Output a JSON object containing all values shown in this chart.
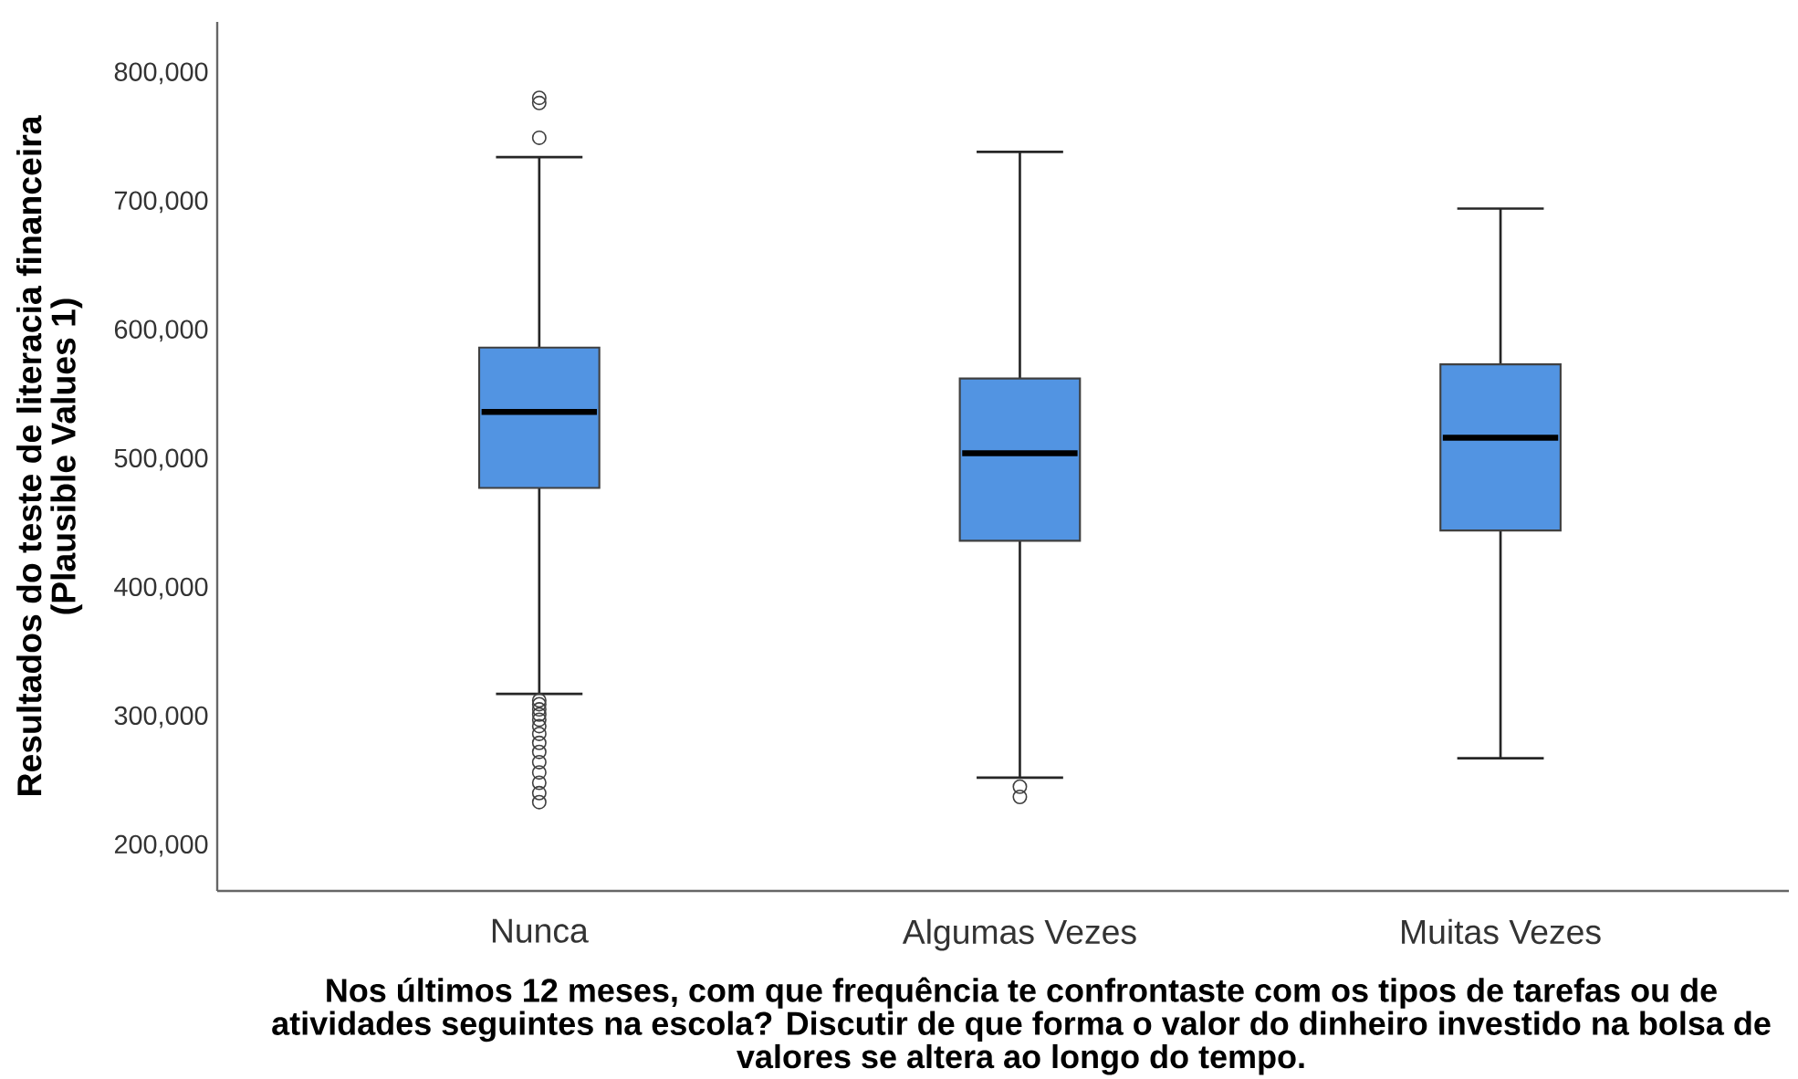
{
  "chart_data": {
    "type": "box",
    "xlabel": "Nos últimos 12 meses, com que frequência te confrontaste com os tipos de tarefas ou de atividades seguintes na escola? Discutir de que forma o valor do dinheiro investido na bolsa de valores se altera ao longo do tempo.",
    "ylabel": "Resultados do teste de literacia financeira (Plausible Values 1)",
    "categories": [
      "Nunca",
      "Algumas Vezes",
      "Muitas Vezes"
    ],
    "color": "#5294e2",
    "boxes": [
      {
        "low": 318000,
        "q1": 478000,
        "median": 537000,
        "q3": 587000,
        "high": 735000,
        "outliers": [
          781000,
          777000,
          750000,
          313000,
          310000,
          306000,
          302000,
          298000,
          293000,
          287000,
          280000,
          273000,
          265000,
          257000,
          249000,
          241000,
          234000
        ]
      },
      {
        "low": 253000,
        "q1": 437000,
        "median": 505000,
        "q3": 563000,
        "high": 739000,
        "outliers": [
          246000,
          238000
        ]
      },
      {
        "low": 268000,
        "q1": 445000,
        "median": 517000,
        "q3": 574000,
        "high": 695000
      }
    ],
    "ylim": [
      165000,
      840000
    ],
    "yticks": [
      {
        "value": 200000,
        "label": "200,000"
      },
      {
        "value": 300000,
        "label": "300,000"
      },
      {
        "value": 400000,
        "label": "400,000"
      },
      {
        "value": 500000,
        "label": "500,000"
      },
      {
        "value": 600000,
        "label": "600,000"
      },
      {
        "value": 700000,
        "label": "700,000"
      },
      {
        "value": 800000,
        "label": "800,000"
      }
    ]
  }
}
